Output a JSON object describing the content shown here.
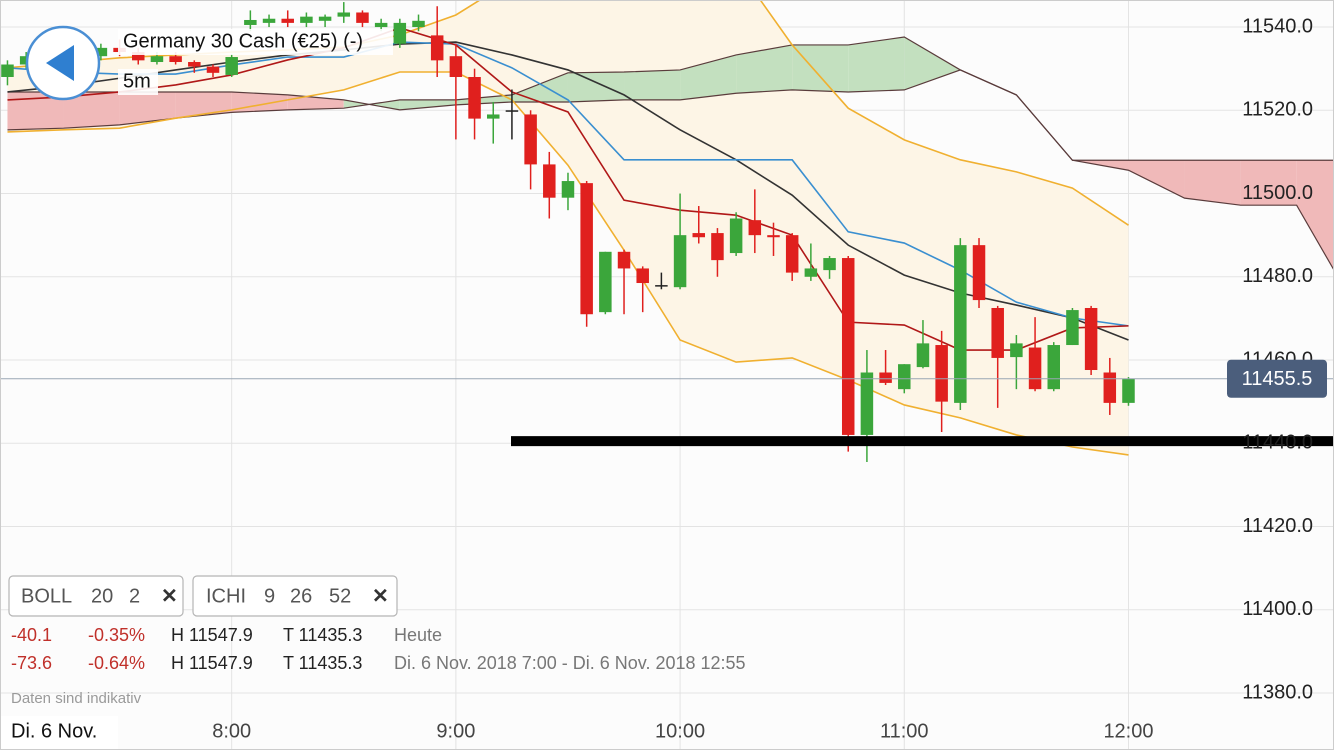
{
  "chart_data": {
    "type": "candlestick",
    "title": "Germany 30 Cash (€25) (-)",
    "interval": "5m",
    "x": [
      "7:00",
      "7:05",
      "7:10",
      "7:15",
      "7:20",
      "7:25",
      "7:30",
      "7:35",
      "7:40",
      "7:45",
      "7:50",
      "7:55",
      "8:00",
      "8:05",
      "8:10",
      "8:15",
      "8:20",
      "8:25",
      "8:30",
      "8:35",
      "8:40",
      "8:45",
      "8:50",
      "8:55",
      "9:00",
      "9:05",
      "9:10",
      "9:15",
      "9:20",
      "9:25",
      "9:30",
      "9:35",
      "9:40",
      "9:45",
      "9:50",
      "9:55",
      "10:00",
      "10:05",
      "10:10",
      "10:15",
      "10:20",
      "10:25",
      "10:30",
      "10:35",
      "10:40",
      "10:45",
      "10:50",
      "10:55",
      "11:00",
      "11:05",
      "11:10",
      "11:15",
      "11:20",
      "11:25",
      "11:30",
      "11:35",
      "11:40",
      "11:45",
      "11:50",
      "11:55",
      "12:00"
    ],
    "open": [
      11528,
      11531,
      11533,
      11532,
      11534,
      11533,
      11535,
      11534,
      11531.6,
      11533,
      11531.6,
      11530.5,
      11528.5,
      11540.5,
      11541,
      11542,
      11541,
      11541.5,
      11542.5,
      11543.5,
      11540,
      11536,
      11540,
      11538,
      11533,
      11528,
      11518,
      11520,
      11519,
      11507,
      11499,
      11502.5,
      11471.5,
      11486,
      11482,
      11478,
      11477.5,
      11490.5,
      11490.5,
      11485.7,
      11493.6,
      11490,
      11490,
      11480,
      11481.6,
      11484.5,
      11442,
      11457,
      11453,
      11458.3,
      11463.6,
      11449.7,
      11487.6,
      11472.5,
      11460.7,
      11463,
      11453,
      11463.6,
      11472.5,
      11457,
      11449.7
    ],
    "high": [
      11532,
      11534,
      11535,
      11536,
      11535,
      11536,
      11537,
      11535,
      11534,
      11534,
      11532,
      11531,
      11533.5,
      11544,
      11543,
      11544,
      11543.5,
      11543,
      11546,
      11544,
      11542,
      11542,
      11543,
      11545,
      11536,
      11530,
      11522,
      11525,
      11520,
      11510,
      11505,
      11503,
      11486,
      11486.5,
      11482.5,
      11481,
      11500,
      11497,
      11491.7,
      11495.5,
      11501,
      11493,
      11490.5,
      11488,
      11485,
      11485,
      11462.4,
      11462.4,
      11459,
      11469.6,
      11467,
      11489.3,
      11489.3,
      11473,
      11466,
      11470.3,
      11464.3,
      11472.5,
      11473,
      11460.5,
      11455.9
    ],
    "low": [
      11526,
      11530,
      11531,
      11531,
      11532,
      11532,
      11533,
      11531,
      11531,
      11531,
      11529,
      11528,
      11528,
      11539,
      11540,
      11540,
      11540,
      11540,
      11541,
      11540,
      11539,
      11535,
      11539,
      11528,
      11513,
      11513,
      11512,
      11513,
      11501,
      11494,
      11496,
      11468,
      11471,
      11471,
      11471.5,
      11477,
      11477,
      11488,
      11480,
      11485,
      11485.7,
      11485,
      11479,
      11479,
      11479.5,
      11438,
      11435.5,
      11454,
      11452,
      11458,
      11442.7,
      11448,
      11472.5,
      11448.5,
      11453,
      11452.5,
      11452.5,
      11463.6,
      11456.4,
      11446.8,
      11449
    ],
    "close": [
      11531,
      11533,
      11532,
      11534,
      11533,
      11535,
      11534,
      11532,
      11533,
      11531.6,
      11530.5,
      11529,
      11532.8,
      11541.7,
      11542,
      11541,
      11542.5,
      11542.5,
      11543.5,
      11541,
      11541,
      11541,
      11541.5,
      11532,
      11528,
      11518,
      11519,
      11520,
      11507,
      11499,
      11503,
      11471,
      11486,
      11482,
      11478.5,
      11478,
      11490,
      11489.5,
      11484,
      11494,
      11490,
      11489.5,
      11481,
      11482,
      11484.5,
      11442,
      11457,
      11454.5,
      11459,
      11464,
      11450,
      11487.6,
      11474.4,
      11460.5,
      11464,
      11453,
      11463.6,
      11472,
      11457.6,
      11449.7,
      11455.5
    ],
    "up_color": "#3ba63b",
    "down_color": "#e0201e",
    "indicators": {
      "x": [
        "7:00",
        "7:15",
        "7:30",
        "7:45",
        "8:00",
        "8:15",
        "8:30",
        "8:45",
        "9:00",
        "9:15",
        "9:30",
        "9:45",
        "10:00",
        "10:15",
        "10:30",
        "10:45",
        "11:00",
        "11:15",
        "11:30",
        "11:45",
        "12:00"
      ],
      "boll_upper": [
        11530.2,
        11531.4,
        11532.6,
        11533.3,
        11534.0,
        11534.5,
        11535.2,
        11538.1,
        11542.9,
        11551.3,
        11557,
        11559,
        11559,
        11554.7,
        11535.7,
        11520.5,
        11512.9,
        11508.1,
        11505.2,
        11501.3,
        11492.4
      ],
      "boll_middle": [
        11524.4,
        11525.8,
        11527.7,
        11529.7,
        11531.6,
        11533.3,
        11534.5,
        11535.9,
        11536.4,
        11533.3,
        11529.7,
        11523.7,
        11515.3,
        11508.1,
        11499.6,
        11487.6,
        11480.4,
        11476.1,
        11473.2,
        11470.1,
        11464.8
      ],
      "boll_lower": [
        11514.8,
        11515.3,
        11515.7,
        11518.1,
        11520.1,
        11522.5,
        11524.9,
        11529.2,
        11529.2,
        11522.5,
        11506.8,
        11486.4,
        11464.8,
        11459.5,
        11460.5,
        11455.2,
        11449.2,
        11446.1,
        11442.0,
        11439.1,
        11437.2
      ],
      "tenkan": [
        11530.2,
        11529.2,
        11528.7,
        11528.7,
        11530.9,
        11532.8,
        11532.8,
        11536.4,
        11535.9,
        11530.2,
        11522.5,
        11508.1,
        11508.1,
        11508.1,
        11508.1,
        11490.8,
        11488.1,
        11481.6,
        11473.9,
        11470.1,
        11468.2
      ],
      "kijun": [
        11522.5,
        11523.2,
        11524.4,
        11526.1,
        11528.5,
        11532.1,
        11535.0,
        11539.8,
        11535.7,
        11524.4,
        11519.6,
        11498.4,
        11496.0,
        11494.8,
        11490.0,
        11469.1,
        11468.4,
        11462.4,
        11462.4,
        11467.7,
        11468.2
      ],
      "boll_color": "#f0b030",
      "boll_fill": "#fdf5e6",
      "middle_color": "#333333",
      "tenkan_color": "#3a8fd0",
      "kijun_color": "#b01818",
      "cloud_x": [
        "7:00",
        "7:15",
        "7:30",
        "7:45",
        "8:00",
        "8:15",
        "8:30",
        "8:45",
        "9:00",
        "9:15",
        "9:30",
        "9:45",
        "10:00",
        "10:15",
        "10:30",
        "10:45",
        "11:00",
        "11:15",
        "11:30",
        "11:45",
        "12:00",
        "12:15",
        "12:30",
        "12:45",
        "12:55"
      ],
      "span_a": [
        11515.3,
        11515.7,
        11516.5,
        11518.1,
        11519.5,
        11520.1,
        11520.5,
        11522.5,
        11522.5,
        11523.7,
        11529.0,
        11529.2,
        11529.7,
        11533.3,
        11535.7,
        11535.7,
        11537.6,
        11529.7,
        11523.7,
        11508.0,
        11505.6,
        11498.9,
        11497.2,
        11497.2,
        11481.6
      ],
      "span_b": [
        11524.4,
        11524.4,
        11524.4,
        11524.4,
        11524.4,
        11523.7,
        11522.5,
        11520.1,
        11521.3,
        11522.0,
        11522.0,
        11522.5,
        11522.5,
        11524.1,
        11524.9,
        11524.4,
        11524.9,
        11529.7,
        11523.7,
        11508.0,
        11508.0,
        11508.0,
        11508.0,
        11508.0,
        11508.0
      ],
      "cloud_up_color": "#c3e0bf",
      "cloud_down_color": "#f0b9b9",
      "cloud_line_color": "#5a3c3c"
    },
    "xlim": [
      "6:58",
      "12:55"
    ],
    "xticks": [
      "8:00",
      "9:00",
      "10:00",
      "11:00",
      "12:00"
    ],
    "ylim": [
      11366.3,
      11546.5
    ],
    "yticks": [
      {
        "value": 11380,
        "label": "11380.0"
      },
      {
        "value": 11400,
        "label": "11400.0"
      },
      {
        "value": 11420,
        "label": "11420.0"
      },
      {
        "value": 11440,
        "label": "11440.0"
      },
      {
        "value": 11460,
        "label": "11460.0"
      },
      {
        "value": 11480,
        "label": "11480.0"
      },
      {
        "value": 11500,
        "label": "11500.0"
      },
      {
        "value": 11520,
        "label": "11520.0"
      },
      {
        "value": 11540,
        "label": "11540.0"
      }
    ],
    "grid": true,
    "last_price": 11455.5,
    "hline": 11440.5
  },
  "ui": {
    "date_label": "Di. 6 Nov.",
    "disclaimer": "Daten sind indikativ",
    "studies": [
      [
        "BOLL",
        "20",
        "2",
        "✕"
      ],
      [
        "ICHI",
        "9",
        "26",
        "52",
        "✕"
      ]
    ],
    "stats": [
      [
        "-40.1",
        "-0.35%",
        "H 11547.9",
        "T 11435.3",
        "Heute"
      ],
      [
        "-73.6",
        "-0.64%",
        "H 11547.9",
        "T 11435.3",
        "Di. 6 Nov. 2018 7:00 - Di. 6 Nov. 2018 12:55"
      ]
    ]
  }
}
